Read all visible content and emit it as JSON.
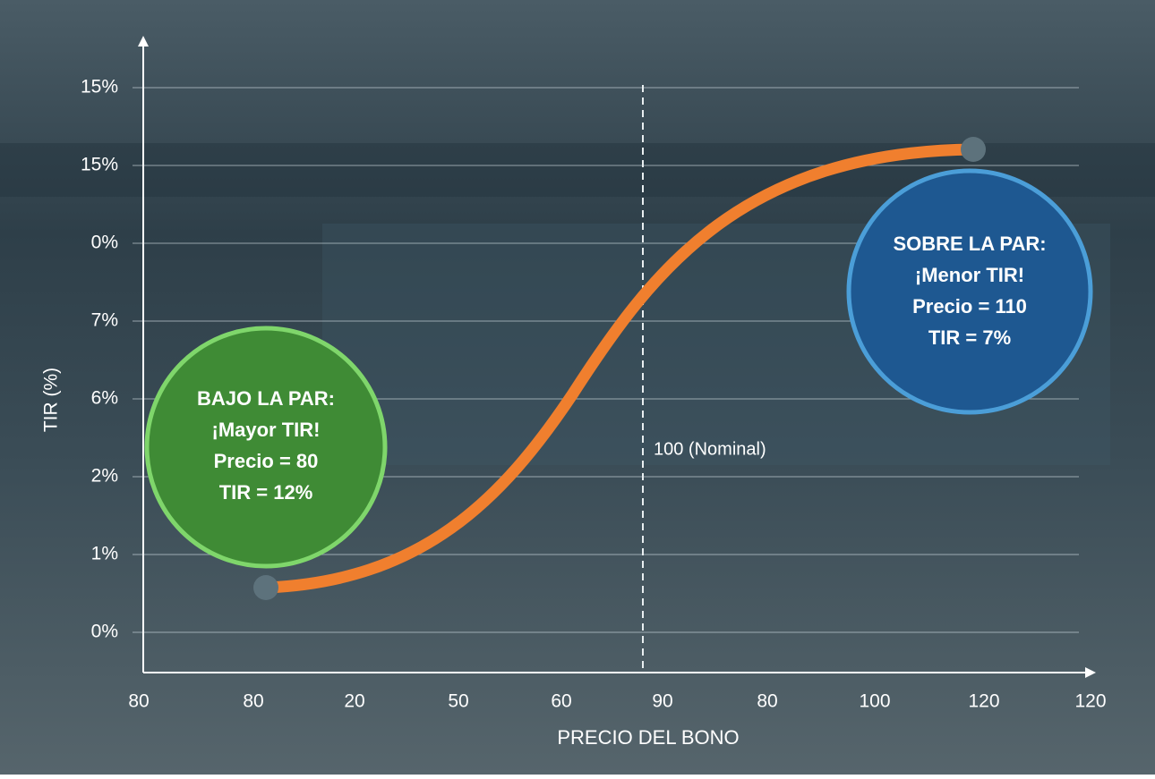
{
  "axes": {
    "y_title": "TIR (%)",
    "x_title": "PRECIO DEL BONO",
    "y_labels": [
      "15%",
      "15%",
      "0%",
      "7%",
      "6%",
      "2%",
      "1%",
      "0%"
    ],
    "x_labels": [
      "80",
      "80",
      "20",
      "50",
      "60",
      "90",
      "80",
      "100",
      "120",
      "120"
    ]
  },
  "reference_line": {
    "label": "100 (Nominal)"
  },
  "callouts": [
    {
      "lines": [
        "BAJO LA PAR:",
        "¡Mayor TIR!",
        "Precio = 80",
        "TIR = 12%"
      ]
    },
    {
      "lines": [
        "SOBRE LA PAR:",
        "¡Menor TIR!",
        "Precio = 110",
        "TIR = 7%"
      ]
    }
  ]
}
